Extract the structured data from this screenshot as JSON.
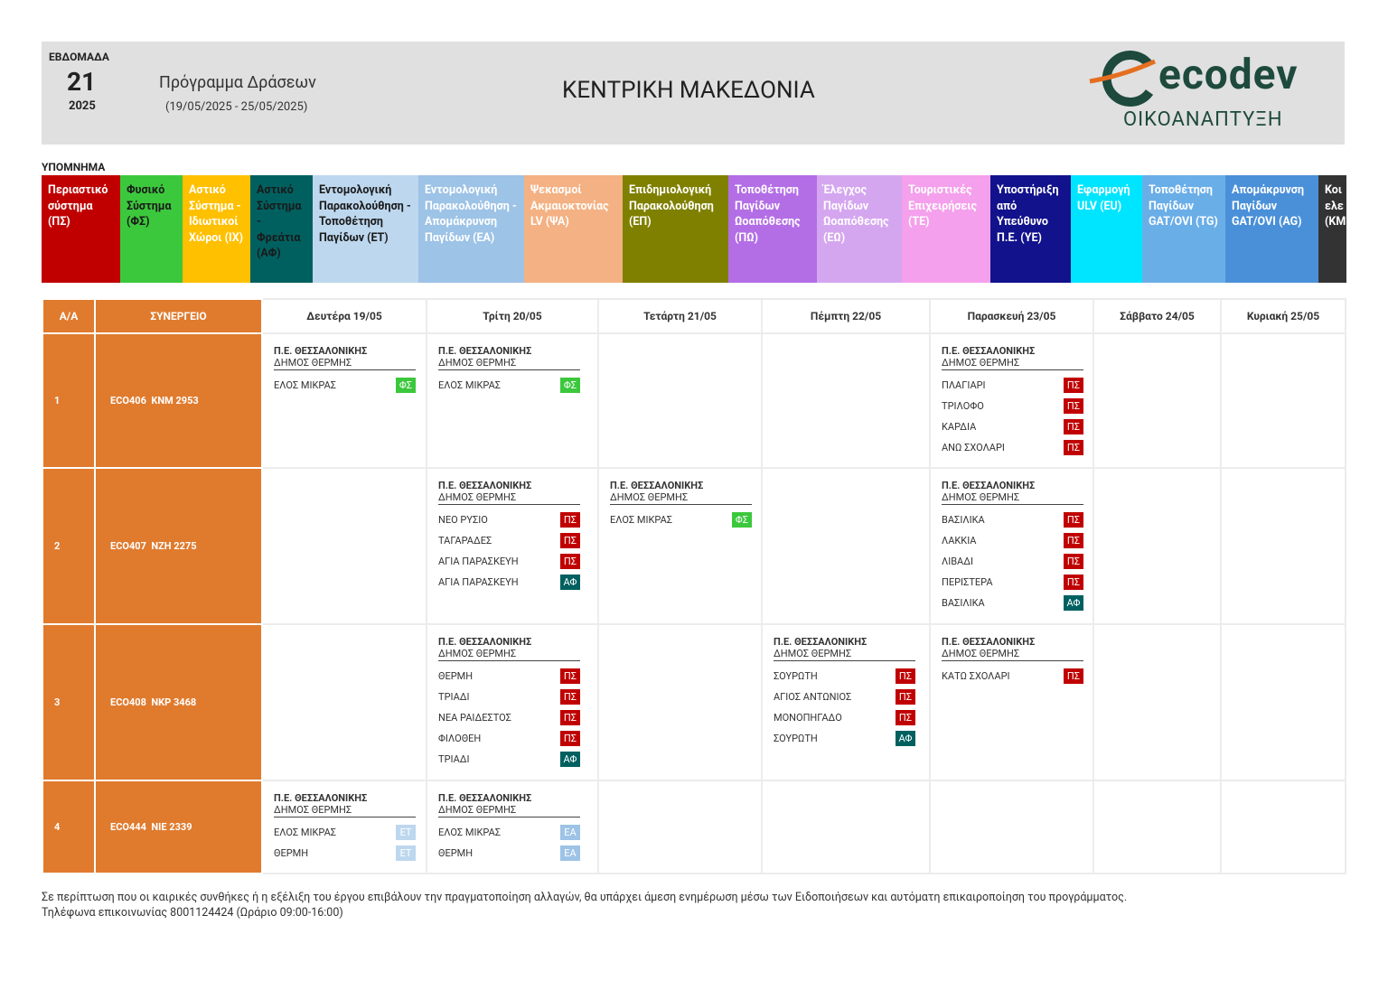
{
  "header": {
    "week_label": "ΕΒΔΟΜΑΔΑ",
    "week": "21",
    "year": "2025",
    "program": "Πρόγραμμα Δράσεων",
    "dates": "(19/05/2025 - 25/05/2025)",
    "region": "ΚΕΝΤΡΙΚΗ ΜΑΚΕΔΟΝΙΑ",
    "logo": "ecodev",
    "logo_sub": "ΟΙΚΟΑΝΑΠΤΥΞΗ"
  },
  "legend": {
    "title": "ΥΠΟΜΝΗΜΑ",
    "items": [
      {
        "label": "Περιαστικό σύστημα (ΠΣ)",
        "color": "#c00000",
        "text_color": "#ffffff"
      },
      {
        "label": "Φυσικό Σύστημα (ΦΣ)",
        "color": "#3cc83c",
        "text_color": "#1a1a1a"
      },
      {
        "label": "Αστικό Σύστημα - Ιδιωτικοί Χώροι (ΙΧ)",
        "color": "#ffc000",
        "text_color": "#ffffff"
      },
      {
        "label": "Αστικό Σύστημα - Φρεάτια (ΑΦ)",
        "color": "#006060",
        "text_color": "#1a1a1a"
      },
      {
        "label": "Εντομολογική Παρακολούθηση - Τοποθέτηση Παγίδων (ΕΤ)",
        "color": "#bdd7ee",
        "text_color": "#1a1a1a"
      },
      {
        "label": "Εντομολογική Παρακολούθηση - Απομάκρυνση Παγίδων (ΕΑ)",
        "color": "#9dc3e6",
        "text_color": "#ffffff"
      },
      {
        "label": "Ψεκασμοί Ακμαιοκτονίας LV (ΨΑ)",
        "color": "#f4b183",
        "text_color": "#ffffff"
      },
      {
        "label": "Επιδημιολογική Παρακολούθηση (ΕΠ)",
        "color": "#808000",
        "text_color": "#ffffff"
      },
      {
        "label": "Τοποθέτηση Παγίδων Ωοαπόθεσης (ΠΩ)",
        "color": "#b36ee6",
        "text_color": "#ffffff"
      },
      {
        "label": "Έλεγχος Παγίδων Ωοαπόθεσης (ΕΩ)",
        "color": "#d5a6f0",
        "text_color": "#ffffff"
      },
      {
        "label": "Τουριστικές Επιχειρήσεις (ΤΕ)",
        "color": "#f5a0ec",
        "text_color": "#ffffff"
      },
      {
        "label": "Υποστήριξη από Υπεύθυνο Π.Ε. (ΥΕ)",
        "color": "#12128c",
        "text_color": "#ffffff"
      },
      {
        "label": "Εφαρμογή ULV (EU)",
        "color": "#00e5ff",
        "text_color": "#ffffff"
      },
      {
        "label": "Τοποθέτηση Παγίδων GAT/OVI (TG)",
        "color": "#6aaee8",
        "text_color": "#ffffff"
      },
      {
        "label": "Απομάκρυνση Παγίδων GAT/OVI (AG)",
        "color": "#4a90d9",
        "text_color": "#ffffff"
      },
      {
        "label": "Κοι ελε (ΚΜ",
        "color": "#333333",
        "text_color": "#ffffff"
      }
    ]
  },
  "table": {
    "columns": [
      "Α/Α",
      "ΣΥΝΕΡΓΕΙΟ",
      "Δευτέρα 19/05",
      "Τρίτη 20/05",
      "Τετάρτη 21/05",
      "Πέμπτη 22/05",
      "Παρασκευή 23/05",
      "Σάββατο 24/05",
      "Κυριακή 25/05"
    ],
    "rows": [
      {
        "no": "1",
        "team": "ECO406  KNM 2953",
        "cells": [
          {
            "region": "Π.Ε. ΘΕΣΣΑΛΟΝΙΚΗΣ",
            "municipality": "ΔΗΜΟΣ ΘΕΡΜΗΣ",
            "items": [
              {
                "place": "ΕΛΟΣ ΜΙΚΡΑΣ",
                "code": "ΦΣ"
              }
            ]
          },
          {
            "region": "Π.Ε. ΘΕΣΣΑΛΟΝΙΚΗΣ",
            "municipality": "ΔΗΜΟΣ ΘΕΡΜΗΣ",
            "items": [
              {
                "place": "ΕΛΟΣ ΜΙΚΡΑΣ",
                "code": "ΦΣ"
              }
            ]
          },
          null,
          null,
          {
            "region": "Π.Ε. ΘΕΣΣΑΛΟΝΙΚΗΣ",
            "municipality": "ΔΗΜΟΣ ΘΕΡΜΗΣ",
            "items": [
              {
                "place": "ΠΛΑΓΙΑΡΙ",
                "code": "ΠΣ"
              },
              {
                "place": "ΤΡΙΛΟΦΟ",
                "code": "ΠΣ"
              },
              {
                "place": "ΚΑΡΔΙΑ",
                "code": "ΠΣ"
              },
              {
                "place": "ΑΝΩ ΣΧΟΛΑΡΙ",
                "code": "ΠΣ"
              }
            ]
          },
          null,
          null
        ]
      },
      {
        "no": "2",
        "team": "ECO407  NZH 2275",
        "cells": [
          null,
          {
            "region": "Π.Ε. ΘΕΣΣΑΛΟΝΙΚΗΣ",
            "municipality": "ΔΗΜΟΣ ΘΕΡΜΗΣ",
            "items": [
              {
                "place": "ΝΕΟ ΡΥΣΙΟ",
                "code": "ΠΣ"
              },
              {
                "place": "ΤΑΓΑΡΑΔΕΣ",
                "code": "ΠΣ"
              },
              {
                "place": "ΑΓΙΑ ΠΑΡΑΣΚΕΥΗ",
                "code": "ΠΣ"
              },
              {
                "place": "ΑΓΙΑ ΠΑΡΑΣΚΕΥΗ",
                "code": "ΑΦ"
              }
            ]
          },
          {
            "region": "Π.Ε. ΘΕΣΣΑΛΟΝΙΚΗΣ",
            "municipality": "ΔΗΜΟΣ ΘΕΡΜΗΣ",
            "items": [
              {
                "place": "ΕΛΟΣ ΜΙΚΡΑΣ",
                "code": "ΦΣ"
              }
            ]
          },
          null,
          {
            "region": "Π.Ε. ΘΕΣΣΑΛΟΝΙΚΗΣ",
            "municipality": "ΔΗΜΟΣ ΘΕΡΜΗΣ",
            "items": [
              {
                "place": "ΒΑΣΙΛΙΚΑ",
                "code": "ΠΣ"
              },
              {
                "place": "ΛΑΚΚΙΑ",
                "code": "ΠΣ"
              },
              {
                "place": "ΛΙΒΑΔΙ",
                "code": "ΠΣ"
              },
              {
                "place": "ΠΕΡΙΣΤΕΡΑ",
                "code": "ΠΣ"
              },
              {
                "place": "ΒΑΣΙΛΙΚΑ",
                "code": "ΑΦ"
              }
            ]
          },
          null,
          null
        ]
      },
      {
        "no": "3",
        "team": "ECO408  NKP 3468",
        "cells": [
          null,
          {
            "region": "Π.Ε. ΘΕΣΣΑΛΟΝΙΚΗΣ",
            "municipality": "ΔΗΜΟΣ ΘΕΡΜΗΣ",
            "items": [
              {
                "place": "ΘΕΡΜΗ",
                "code": "ΠΣ"
              },
              {
                "place": "ΤΡΙΑΔΙ",
                "code": "ΠΣ"
              },
              {
                "place": "ΝΕΑ ΡΑΙΔΕΣΤΟΣ",
                "code": "ΠΣ"
              },
              {
                "place": "ΦΙΛΟΘΕΗ",
                "code": "ΠΣ"
              },
              {
                "place": "ΤΡΙΑΔΙ",
                "code": "ΑΦ"
              }
            ]
          },
          null,
          {
            "region": "Π.Ε. ΘΕΣΣΑΛΟΝΙΚΗΣ",
            "municipality": "ΔΗΜΟΣ ΘΕΡΜΗΣ",
            "items": [
              {
                "place": "ΣΟΥΡΩΤΗ",
                "code": "ΠΣ"
              },
              {
                "place": "ΑΓΙΟΣ ΑΝΤΩΝΙΟΣ",
                "code": "ΠΣ"
              },
              {
                "place": "ΜΟΝΟΠΗΓΑΔΟ",
                "code": "ΠΣ"
              },
              {
                "place": "ΣΟΥΡΩΤΗ",
                "code": "ΑΦ"
              }
            ]
          },
          {
            "region": "Π.Ε. ΘΕΣΣΑΛΟΝΙΚΗΣ",
            "municipality": "ΔΗΜΟΣ ΘΕΡΜΗΣ",
            "items": [
              {
                "place": "ΚΑΤΩ ΣΧΟΛΑΡΙ",
                "code": "ΠΣ"
              }
            ]
          },
          null,
          null
        ]
      },
      {
        "no": "4",
        "team": "ECO444  NIE 2339",
        "cells": [
          {
            "region": "Π.Ε. ΘΕΣΣΑΛΟΝΙΚΗΣ",
            "municipality": "ΔΗΜΟΣ ΘΕΡΜΗΣ",
            "items": [
              {
                "place": "ΕΛΟΣ ΜΙΚΡΑΣ",
                "code": "ΕΤ"
              },
              {
                "place": "ΘΕΡΜΗ",
                "code": "ΕΤ"
              }
            ]
          },
          {
            "region": "Π.Ε. ΘΕΣΣΑΛΟΝΙΚΗΣ",
            "municipality": "ΔΗΜΟΣ ΘΕΡΜΗΣ",
            "items": [
              {
                "place": "ΕΛΟΣ ΜΙΚΡΑΣ",
                "code": "ΕΑ"
              },
              {
                "place": "ΘΕΡΜΗ",
                "code": "ΕΑ"
              }
            ]
          },
          null,
          null,
          null,
          null,
          null
        ]
      }
    ]
  },
  "footer": [
    "Σε περίπτωση που οι καιρικές συνθήκες ή η εξέλιξη του έργου επιβάλουν την πραγματοποίηση αλλαγών, θα υπάρχει άμεση ενημέρωση μέσω των Ειδοποιήσεων και αυτόματη επικαιροποίηση του προγράμματος.",
    "Τηλέφωνα επικοινωνίας 8001124424 (Ωράριο 09:00-16:00)"
  ]
}
